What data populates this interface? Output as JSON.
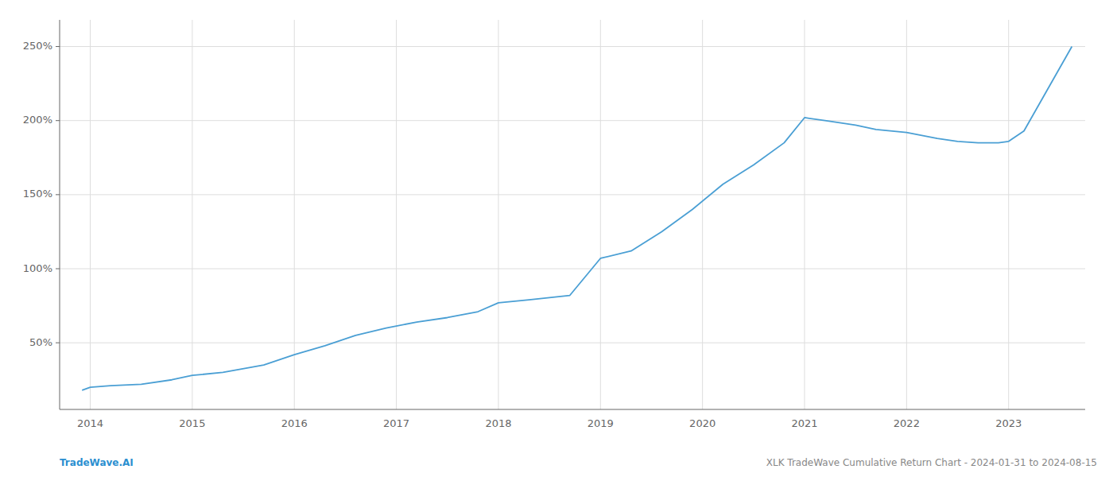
{
  "chart_data": {
    "type": "line",
    "x": [
      2013.92,
      2014.0,
      2014.2,
      2014.5,
      2014.8,
      2015.0,
      2015.3,
      2015.7,
      2016.0,
      2016.3,
      2016.6,
      2016.9,
      2017.2,
      2017.5,
      2017.8,
      2018.0,
      2018.3,
      2018.7,
      2019.0,
      2019.3,
      2019.6,
      2019.9,
      2020.2,
      2020.5,
      2020.8,
      2021.0,
      2021.2,
      2021.5,
      2021.7,
      2022.0,
      2022.3,
      2022.5,
      2022.7,
      2022.9,
      2023.0,
      2023.15,
      2023.62
    ],
    "values": [
      18,
      20,
      21,
      22,
      25,
      28,
      30,
      35,
      42,
      48,
      55,
      60,
      64,
      67,
      71,
      77,
      79,
      82,
      107,
      112,
      125,
      140,
      157,
      170,
      185,
      202,
      200,
      197,
      194,
      192,
      188,
      186,
      185,
      185,
      186,
      193,
      250
    ],
    "color": "#4a9fd4",
    "xlim": [
      2013.7,
      2023.75
    ],
    "xticks": [
      2014,
      2015,
      2016,
      2017,
      2018,
      2019,
      2020,
      2021,
      2022,
      2023
    ],
    "ylim": [
      5,
      268
    ],
    "yticks": [
      {
        "value": 50,
        "label": "50%"
      },
      {
        "value": 100,
        "label": "100%"
      },
      {
        "value": 150,
        "label": "150%"
      },
      {
        "value": 200,
        "label": "200%"
      },
      {
        "value": 250,
        "label": "250%"
      }
    ],
    "grid": true,
    "annotations": [
      {
        "text": "TradeWave.AI",
        "color": "#2b8fd0"
      },
      {
        "text": "XLK TradeWave Cumulative Return Chart - 2024-01-31 to 2024-08-15",
        "color": "#888888"
      }
    ]
  }
}
